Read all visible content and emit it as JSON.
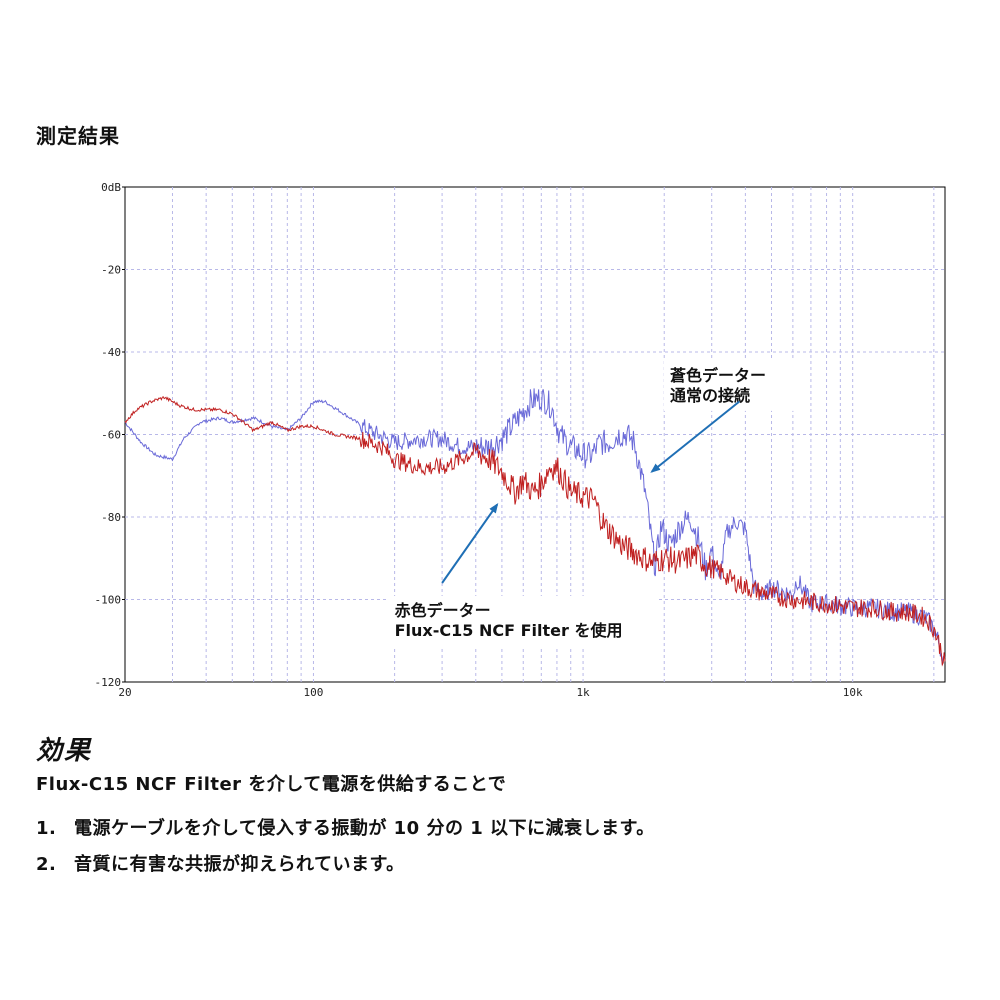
{
  "heading": "測定結果",
  "chart_data": {
    "type": "line",
    "title": "",
    "xlabel": "",
    "ylabel": "",
    "x_scale": "log",
    "xlim": [
      20,
      22000
    ],
    "ylim": [
      -120,
      0
    ],
    "x_ticks": [
      {
        "value": 20,
        "label": "20"
      },
      {
        "value": 100,
        "label": "100"
      },
      {
        "value": 1000,
        "label": "1k"
      },
      {
        "value": 10000,
        "label": "10k"
      }
    ],
    "y_ticks": [
      {
        "value": 0,
        "label": "0dB"
      },
      {
        "value": -20,
        "label": "-20"
      },
      {
        "value": -40,
        "label": "-40"
      },
      {
        "value": -60,
        "label": "-60"
      },
      {
        "value": -80,
        "label": "-80"
      },
      {
        "value": -100,
        "label": "-100"
      },
      {
        "value": -120,
        "label": "-120"
      }
    ],
    "grid": true,
    "series": [
      {
        "name": "",
        "color": "#6a6ad8",
        "x": [
          20,
          23,
          26,
          30,
          33,
          38,
          45,
          50,
          60,
          70,
          80,
          90,
          100,
          110,
          130,
          160,
          200,
          250,
          300,
          350,
          400,
          450,
          500,
          560,
          640,
          700,
          760,
          820,
          900,
          960,
          1000,
          1080,
          1150,
          1250,
          1350,
          1450,
          1550,
          1700,
          1850,
          1950,
          2100,
          2300,
          2500,
          2700,
          2850,
          3000,
          3200,
          3400,
          3700,
          4000,
          4300,
          4700,
          5000,
          5500,
          6000,
          6200,
          7000,
          8000,
          10000,
          12000,
          14000,
          16000,
          18000,
          19000,
          20000,
          21000,
          22000
        ],
        "y": [
          -57,
          -62,
          -65,
          -66,
          -61,
          -57,
          -56,
          -57,
          -56,
          -58,
          -59,
          -56,
          -52,
          -52,
          -55,
          -59,
          -62,
          -61,
          -61,
          -63,
          -63,
          -63,
          -61,
          -57,
          -52,
          -51,
          -53,
          -60,
          -63,
          -64,
          -65,
          -65,
          -62,
          -62,
          -60,
          -60,
          -62,
          -74,
          -92,
          -82,
          -87,
          -82,
          -80,
          -86,
          -93,
          -88,
          -96,
          -84,
          -81,
          -83,
          -97,
          -99,
          -97,
          -98,
          -99,
          -95,
          -101,
          -101,
          -102,
          -102,
          -103,
          -103,
          -104,
          -105,
          -107,
          -111,
          -116
        ]
      },
      {
        "name": "",
        "color": "#c02020",
        "x": [
          20,
          22,
          25,
          28,
          32,
          36,
          40,
          45,
          50,
          55,
          60,
          70,
          80,
          90,
          100,
          120,
          150,
          180,
          200,
          250,
          300,
          350,
          400,
          450,
          500,
          560,
          600,
          650,
          700,
          750,
          800,
          900,
          1000,
          1100,
          1200,
          1400,
          1600,
          1800,
          2000,
          2300,
          2600,
          2900,
          3200,
          3500,
          4000,
          5000,
          6000,
          8000,
          10000,
          12000,
          14000,
          16000,
          18000,
          19000,
          20000,
          21000,
          22000
        ],
        "y": [
          -57,
          -54,
          -52,
          -51,
          -53,
          -54,
          -54,
          -54,
          -55,
          -57,
          -59,
          -57,
          -59,
          -58,
          -58,
          -60,
          -61,
          -63,
          -66,
          -68,
          -68,
          -66,
          -64,
          -66,
          -69,
          -74,
          -71,
          -74,
          -72,
          -68,
          -68,
          -74,
          -75,
          -76,
          -82,
          -87,
          -89,
          -91,
          -90,
          -91,
          -89,
          -92,
          -93,
          -95,
          -97,
          -99,
          -100,
          -101,
          -102,
          -102,
          -103,
          -103,
          -104,
          -105,
          -107,
          -111,
          -116
        ]
      }
    ],
    "annotations": [
      {
        "lines": [
          "蒼色データー",
          "通常の接続"
        ],
        "x": 2100,
        "y": -47,
        "arrow_from": [
          3800,
          -52
        ],
        "arrow_to": [
          1800,
          -69
        ]
      },
      {
        "lines": [
          "赤色データー",
          "Flux-C15 NCF Filter  を使用"
        ],
        "x": 200,
        "y": -104,
        "arrow_from": [
          300,
          -96
        ],
        "arrow_to": [
          480,
          -77
        ]
      }
    ]
  },
  "effect_title": "効果",
  "effect_intro": "Flux-C15 NCF Filter  を介して電源を供給することで",
  "effect_items": [
    {
      "num": "1.",
      "text": "電源ケーブルを介して侵入する振動が 10 分の 1 以下に減衰します。"
    },
    {
      "num": "2.",
      "text": "音質に有害な共振が抑えられています。"
    }
  ]
}
